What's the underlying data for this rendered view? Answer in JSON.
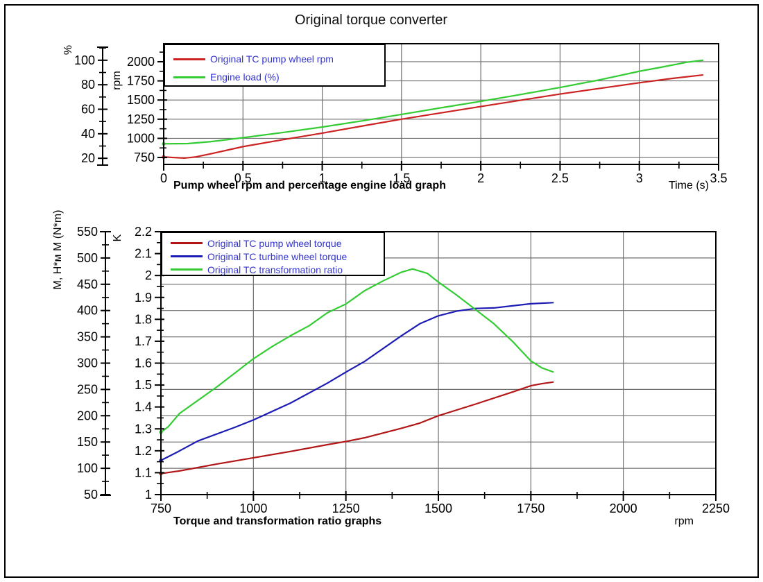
{
  "page": {
    "title": "Original torque converter"
  },
  "colors": {
    "legend_text": "#3333cc",
    "grid": "#6e6e6e",
    "frame": "#000000",
    "top_red": "#cc2222",
    "green": "#33cc33",
    "dark_red": "#b21616",
    "blue": "#1c1cb4"
  },
  "chart_data": [
    {
      "type": "line",
      "caption": "Pump wheel rpm and percentage engine load graph",
      "x_axis": {
        "label": "Time (s)",
        "min": 0,
        "max": 3.5,
        "major_ticks": [
          0,
          0.5,
          1,
          1.5,
          2,
          2.5,
          3,
          3.5
        ],
        "minor_ticks": [
          0.25,
          0.75,
          1.25,
          1.75,
          2.25,
          2.75,
          3.25
        ],
        "grid_values": [
          0.5,
          1,
          1.5,
          2,
          2.5,
          3
        ]
      },
      "inner_axis": {
        "label": "rpm",
        "range": [
          660,
          2235
        ],
        "major_ticks": [
          750,
          1000,
          1250,
          1500,
          1750,
          2000
        ],
        "minor_ticks": [
          875,
          1125,
          1375,
          1625,
          1875,
          2125
        ],
        "grid": true
      },
      "outer_axis": {
        "label": "%",
        "range": [
          15,
          113.5
        ],
        "major_ticks": [
          20,
          40,
          60,
          80,
          100
        ],
        "minor_ticks": [
          30,
          50,
          70,
          90,
          110
        ],
        "grid": false
      },
      "legend": [
        {
          "label": "Original TC pump wheel rpm",
          "color_key": "top_red"
        },
        {
          "label": "Engine load (%)",
          "color_key": "green"
        }
      ],
      "series": [
        {
          "name": "Original TC pump wheel rpm",
          "axis": "inner",
          "color_key": "top_red",
          "start_dot": true,
          "points": [
            [
              0,
              757
            ],
            [
              0.07,
              749
            ],
            [
              0.13,
              742
            ],
            [
              0.2,
              757
            ],
            [
              0.3,
              800
            ],
            [
              0.5,
              892
            ],
            [
              0.75,
              982
            ],
            [
              1,
              1068
            ],
            [
              1.25,
              1160
            ],
            [
              1.5,
              1250
            ],
            [
              1.75,
              1333
            ],
            [
              2,
              1415
            ],
            [
              2.25,
              1497
            ],
            [
              2.5,
              1578
            ],
            [
              2.75,
              1652
            ],
            [
              3,
              1725
            ],
            [
              3.2,
              1780
            ],
            [
              3.4,
              1827
            ]
          ]
        },
        {
          "name": "Engine load (%)",
          "axis": "outer",
          "color_key": "green",
          "start_dot": true,
          "points": [
            [
              0,
              31.8
            ],
            [
              0.15,
              32
            ],
            [
              0.3,
              33.6
            ],
            [
              0.5,
              36.8
            ],
            [
              0.75,
              41
            ],
            [
              1,
              45.5
            ],
            [
              1.25,
              50.5
            ],
            [
              1.5,
              55.8
            ],
            [
              1.75,
              61.2
            ],
            [
              2,
              66.5
            ],
            [
              2.25,
              72
            ],
            [
              2.5,
              77.8
            ],
            [
              2.75,
              84
            ],
            [
              3,
              91
            ],
            [
              3.15,
              94.6
            ],
            [
              3.3,
              98.4
            ],
            [
              3.4,
              100
            ]
          ]
        }
      ]
    },
    {
      "type": "line",
      "caption": "Torque and transformation ratio graphs",
      "x_axis": {
        "label": "rpm",
        "min": 750,
        "max": 2250,
        "major_ticks": [
          750,
          1000,
          1250,
          1500,
          1750,
          2000,
          2250
        ],
        "minor_ticks": [
          875,
          1125,
          1375,
          1625,
          1875,
          2125
        ],
        "grid_values": [
          1000,
          1250,
          1500,
          1750,
          2000
        ]
      },
      "inner_axis": {
        "label": "K",
        "range": [
          1,
          2.2
        ],
        "major_ticks": [
          1,
          1.1,
          1.2,
          1.3,
          1.4,
          1.5,
          1.6,
          1.7,
          1.8,
          1.9,
          2,
          2.1,
          2.2
        ],
        "minor_ticks": [
          1.05,
          1.15,
          1.25,
          1.35,
          1.45,
          1.55,
          1.65,
          1.75,
          1.85,
          1.95,
          2.05,
          2.15
        ],
        "grid": false
      },
      "outer_axis": {
        "label": "M, H*м M (N*m)",
        "range": [
          50,
          550
        ],
        "major_ticks": [
          50,
          100,
          150,
          200,
          250,
          300,
          350,
          400,
          450,
          500,
          550
        ],
        "minor_ticks": [
          75,
          125,
          175,
          225,
          275,
          325,
          375,
          425,
          475,
          525
        ],
        "grid_values": [
          100,
          150,
          200,
          250,
          300,
          350,
          400,
          450,
          500
        ]
      },
      "legend": [
        {
          "label": "Original TC pump wheel torque",
          "color_key": "dark_red"
        },
        {
          "label": "Original TC turbine wheel torque",
          "color_key": "blue"
        },
        {
          "label": "Original TC transformation ratio",
          "color_key": "green"
        }
      ],
      "series": [
        {
          "name": "Original TC pump wheel torque",
          "axis": "outer",
          "color_key": "dark_red",
          "start_dot": true,
          "points": [
            [
              750,
              90
            ],
            [
              800,
              95
            ],
            [
              900,
              108
            ],
            [
              1000,
              120
            ],
            [
              1100,
              132
            ],
            [
              1200,
              145
            ],
            [
              1250,
              151
            ],
            [
              1300,
              158
            ],
            [
              1400,
              176
            ],
            [
              1450,
              186
            ],
            [
              1500,
              200
            ],
            [
              1600,
              222
            ],
            [
              1700,
              245
            ],
            [
              1750,
              257
            ],
            [
              1780,
              261
            ],
            [
              1810,
              264
            ]
          ]
        },
        {
          "name": "Original TC turbine wheel torque",
          "axis": "outer",
          "color_key": "blue",
          "start_dot": true,
          "points": [
            [
              750,
              115
            ],
            [
              800,
              133
            ],
            [
              850,
              152
            ],
            [
              950,
              178
            ],
            [
              1000,
              192
            ],
            [
              1100,
              224
            ],
            [
              1200,
              262
            ],
            [
              1250,
              283
            ],
            [
              1300,
              303
            ],
            [
              1400,
              352
            ],
            [
              1450,
              375
            ],
            [
              1500,
              390
            ],
            [
              1550,
              399
            ],
            [
              1600,
              404
            ],
            [
              1650,
              405
            ],
            [
              1700,
              409
            ],
            [
              1750,
              413
            ],
            [
              1810,
              415
            ]
          ]
        },
        {
          "name": "Original TC transformation ratio",
          "axis": "inner",
          "color_key": "green",
          "start_dot": true,
          "points": [
            [
              750,
              1.285
            ],
            [
              770,
              1.31
            ],
            [
              800,
              1.37
            ],
            [
              850,
              1.43
            ],
            [
              900,
              1.49
            ],
            [
              950,
              1.555
            ],
            [
              1000,
              1.62
            ],
            [
              1050,
              1.675
            ],
            [
              1100,
              1.725
            ],
            [
              1150,
              1.77
            ],
            [
              1200,
              1.83
            ],
            [
              1250,
              1.87
            ],
            [
              1300,
              1.93
            ],
            [
              1350,
              1.975
            ],
            [
              1400,
              2.015
            ],
            [
              1430,
              2.03
            ],
            [
              1470,
              2.01
            ],
            [
              1500,
              1.97
            ],
            [
              1550,
              1.91
            ],
            [
              1600,
              1.845
            ],
            [
              1650,
              1.78
            ],
            [
              1700,
              1.7
            ],
            [
              1750,
              1.61
            ],
            [
              1780,
              1.578
            ],
            [
              1810,
              1.56
            ]
          ]
        }
      ]
    }
  ]
}
